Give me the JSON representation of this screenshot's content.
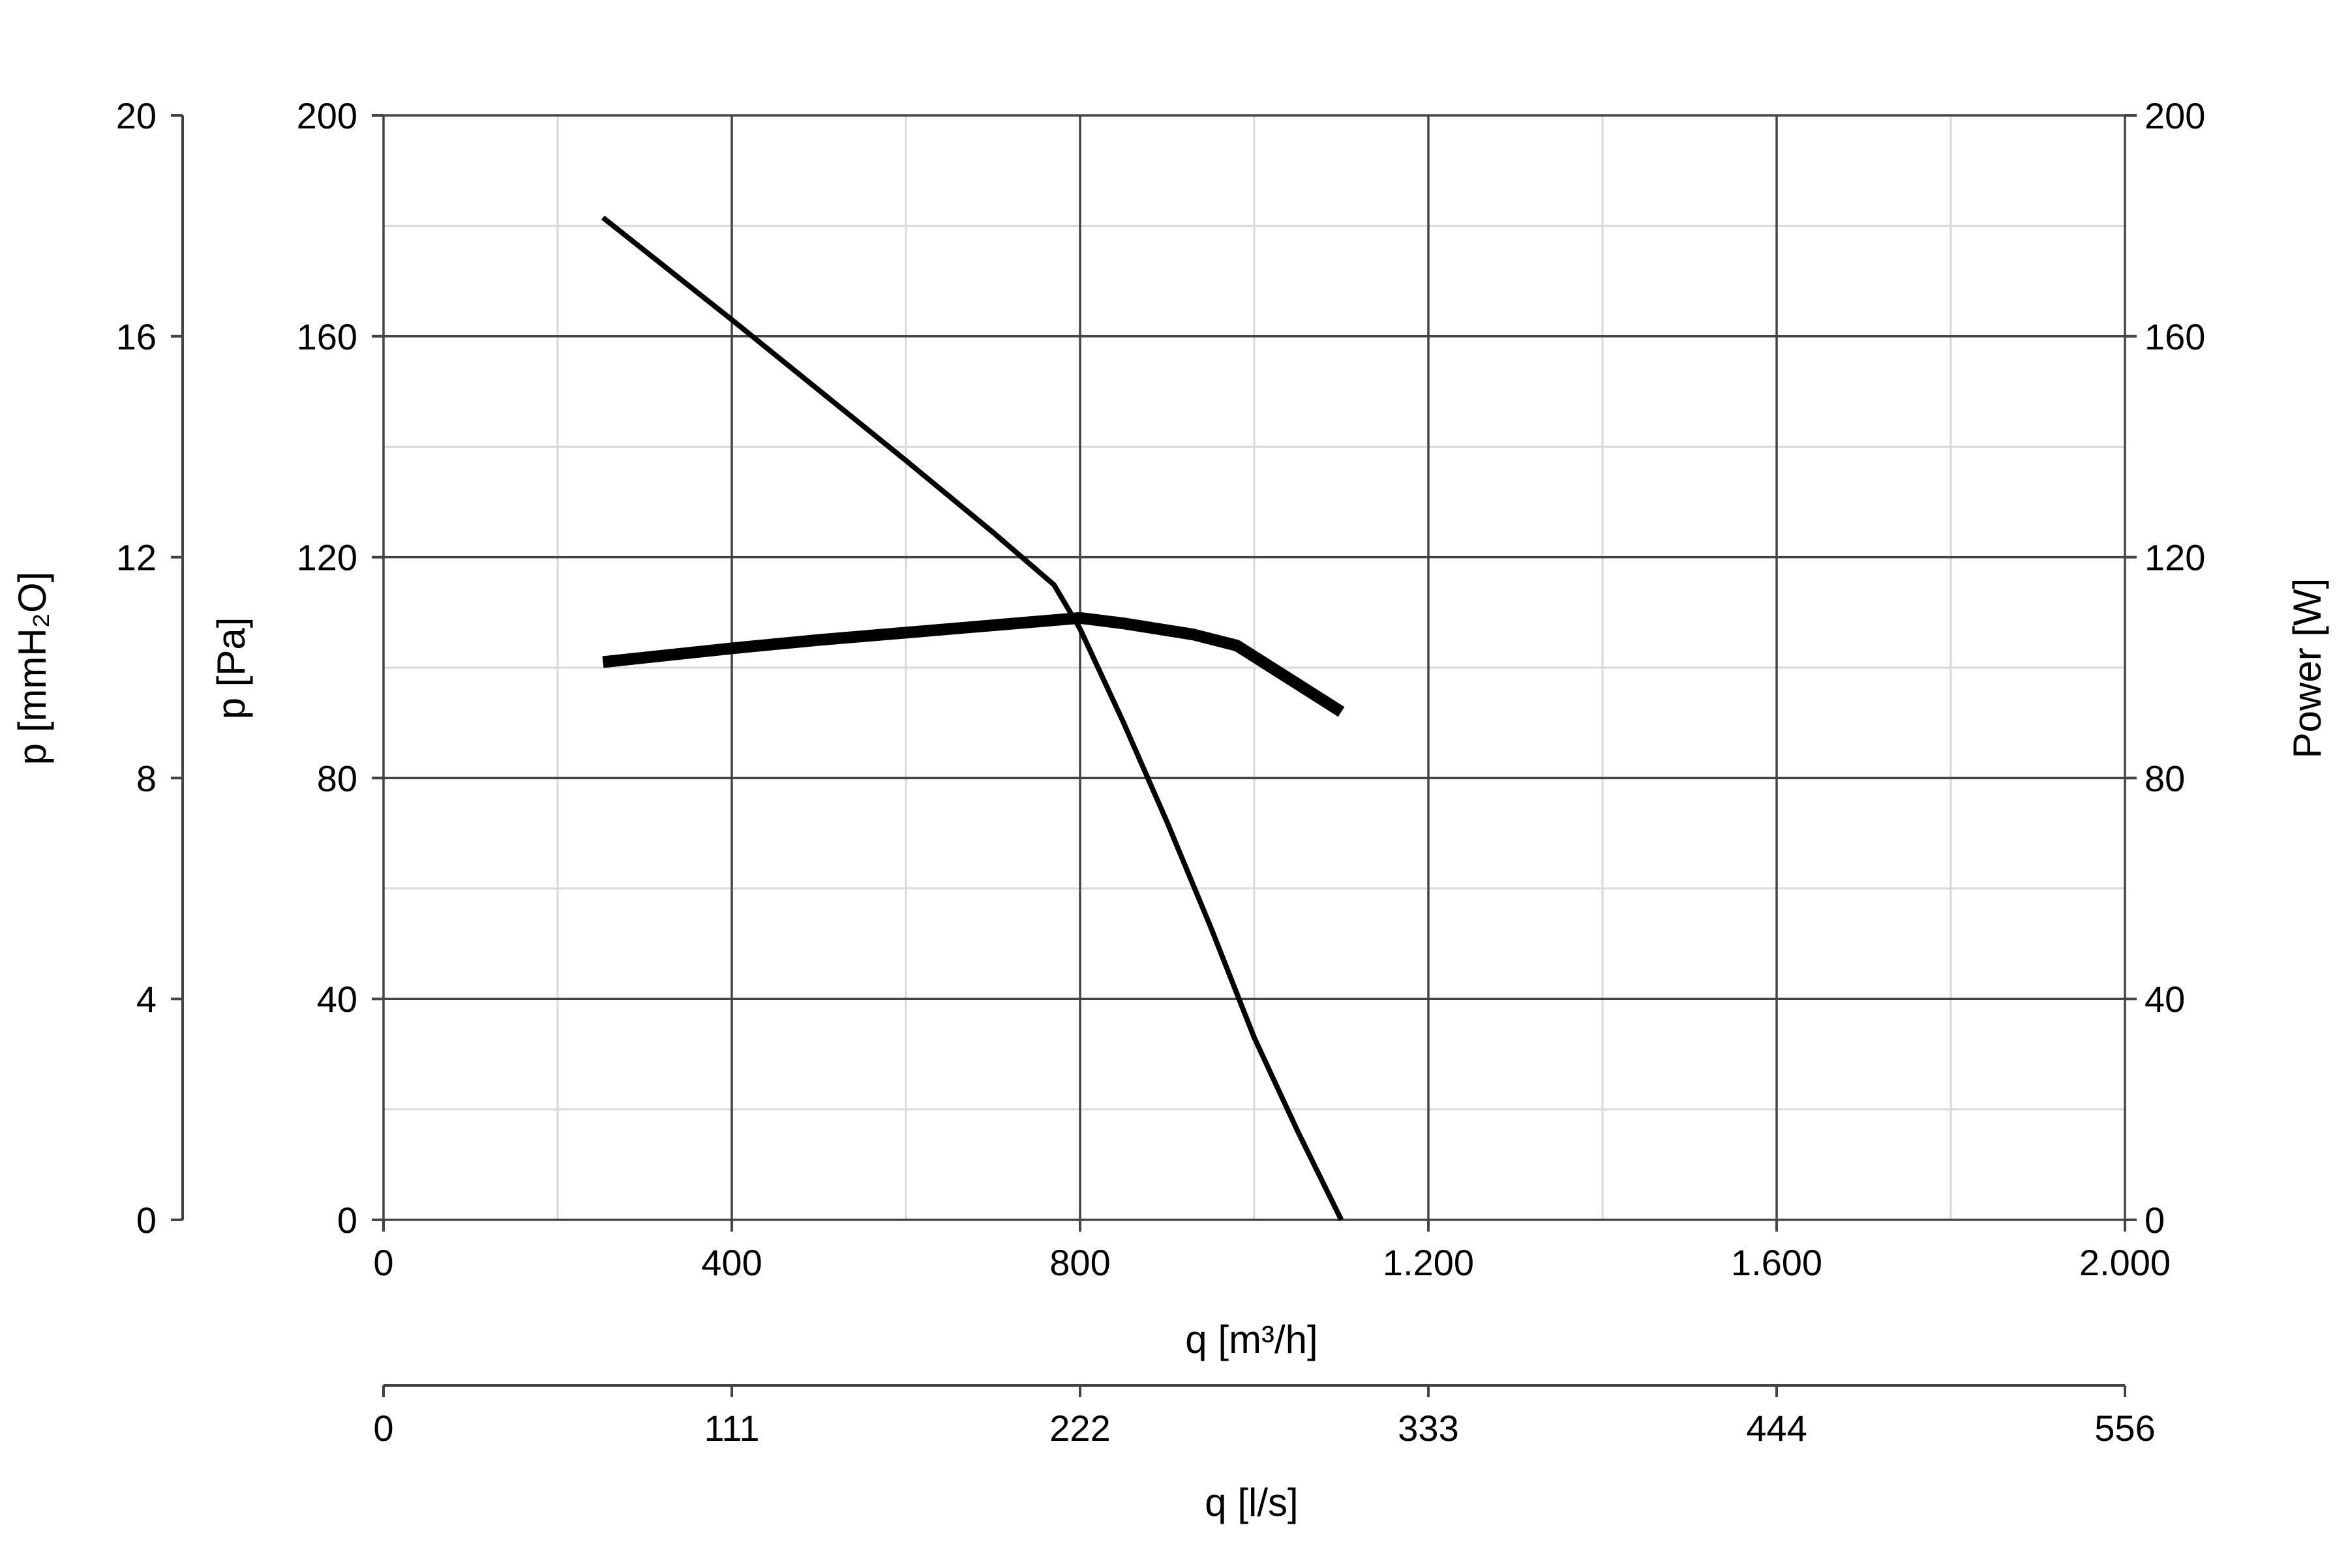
{
  "chart_data": {
    "type": "line",
    "x": {
      "label": "q [m³/h]",
      "range": [
        0,
        2000
      ],
      "ticks": [
        0,
        400,
        800,
        1200,
        1600,
        2000
      ],
      "tick_labels": [
        "0",
        "400",
        "800",
        "1.200",
        "1.600",
        "2.000"
      ],
      "minor_step": 200
    },
    "x_secondary": {
      "label": "q [l/s]",
      "tick_labels": [
        "0",
        "111",
        "222",
        "333",
        "444",
        "556"
      ]
    },
    "y_left": {
      "label": "p [Pa]",
      "range": [
        0,
        200
      ],
      "ticks": [
        0,
        40,
        80,
        120,
        160,
        200
      ],
      "tick_labels": [
        "0",
        "40",
        "80",
        "120",
        "160",
        "200"
      ],
      "minor_step": 20
    },
    "y_left_secondary": {
      "label": "p [mmH₂O]",
      "tick_labels": [
        "0",
        "4",
        "8",
        "12",
        "16",
        "20"
      ]
    },
    "y_right": {
      "label": "Power [W]",
      "range": [
        0,
        200
      ],
      "ticks": [
        0,
        40,
        80,
        120,
        160,
        200
      ],
      "tick_labels": [
        "0",
        "40",
        "80",
        "120",
        "160",
        "200"
      ]
    },
    "grid": true,
    "series": [
      {
        "axis": "left",
        "color": "#000000",
        "weight": "thin",
        "points": [
          [
            252,
            181.5
          ],
          [
            400,
            163
          ],
          [
            600,
            137.5
          ],
          [
            700,
            124.5
          ],
          [
            770,
            115
          ],
          [
            800,
            107
          ],
          [
            850,
            90
          ],
          [
            900,
            72
          ],
          [
            950,
            53
          ],
          [
            1000,
            33
          ],
          [
            1050,
            16
          ],
          [
            1100,
            0
          ]
        ]
      },
      {
        "axis": "right",
        "color": "#000000",
        "weight": "thick",
        "points": [
          [
            252,
            101
          ],
          [
            400,
            103.5
          ],
          [
            500,
            105
          ],
          [
            650,
            107
          ],
          [
            800,
            109
          ],
          [
            850,
            108
          ],
          [
            930,
            106
          ],
          [
            980,
            104
          ],
          [
            1050,
            97
          ],
          [
            1100,
            92
          ]
        ]
      }
    ]
  }
}
